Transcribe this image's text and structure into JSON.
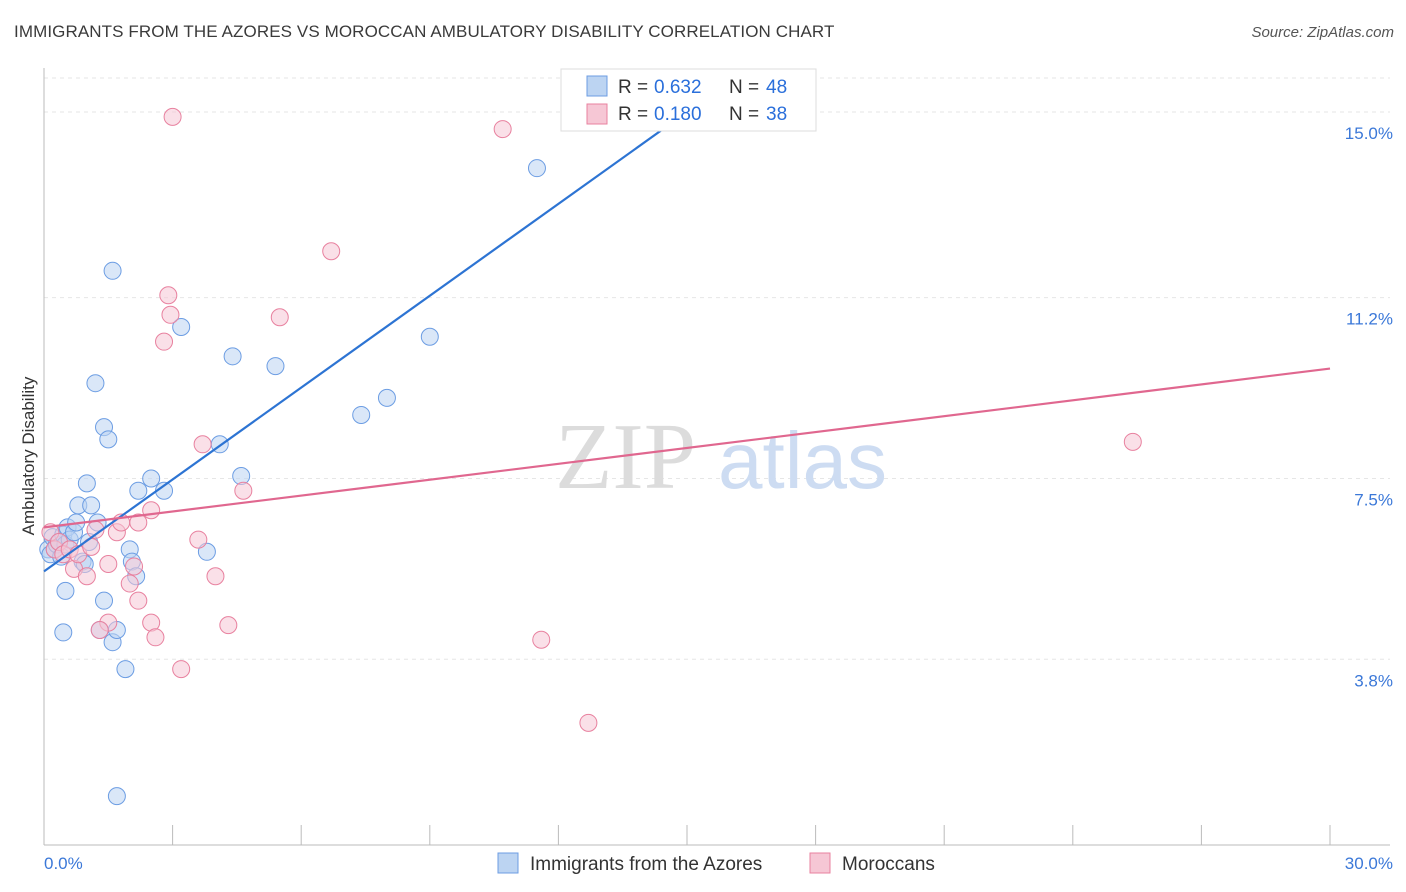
{
  "header": {
    "title": "IMMIGRANTS FROM THE AZORES VS MOROCCAN AMBULATORY DISABILITY CORRELATION CHART",
    "source": "Source: ZipAtlas.com"
  },
  "watermark": {
    "part1": "ZIP",
    "part2": "atlas"
  },
  "chart_data": {
    "type": "scatter",
    "title": "IMMIGRANTS FROM THE AZORES VS MOROCCAN AMBULATORY DISABILITY CORRELATION CHART",
    "xlabel": "",
    "ylabel": "Ambulatory Disability",
    "xlim": [
      0,
      30
    ],
    "ylim": [
      0,
      15.9
    ],
    "x_tick_labels": {
      "left": "0.0%",
      "right": "30.0%"
    },
    "y_ticks": [
      {
        "value": 3.8,
        "label": "3.8%"
      },
      {
        "value": 7.5,
        "label": "7.5%"
      },
      {
        "value": 11.2,
        "label": "11.2%"
      },
      {
        "value": 15.0,
        "label": "15.0%"
      }
    ],
    "grid": true,
    "legend": {
      "placement": "top-center",
      "r_label": "R = ",
      "n_label": "N = ",
      "entries": [
        {
          "r": "0.632",
          "n": "48"
        },
        {
          "r": "0.180",
          "n": "38"
        }
      ]
    },
    "series": [
      {
        "name": "Immigrants from the Azores",
        "color": "#6c9de3",
        "fill": "#bcd4f2",
        "points": [
          [
            0.1,
            6.05
          ],
          [
            0.15,
            5.95
          ],
          [
            0.2,
            6.3
          ],
          [
            0.25,
            6.05
          ],
          [
            0.3,
            6.15
          ],
          [
            0.35,
            6.2
          ],
          [
            0.4,
            5.9
          ],
          [
            0.45,
            6.35
          ],
          [
            0.5,
            6.15
          ],
          [
            0.55,
            6.5
          ],
          [
            0.6,
            6.25
          ],
          [
            0.7,
            6.4
          ],
          [
            0.75,
            6.6
          ],
          [
            0.8,
            6.95
          ],
          [
            0.9,
            5.8
          ],
          [
            0.95,
            5.75
          ],
          [
            1.0,
            7.4
          ],
          [
            1.05,
            6.2
          ],
          [
            1.1,
            6.95
          ],
          [
            1.2,
            9.45
          ],
          [
            1.25,
            6.6
          ],
          [
            1.4,
            8.55
          ],
          [
            1.5,
            8.3
          ],
          [
            1.6,
            11.75
          ],
          [
            2.0,
            6.05
          ],
          [
            2.05,
            5.8
          ],
          [
            2.15,
            5.5
          ],
          [
            2.2,
            7.25
          ],
          [
            2.5,
            7.5
          ],
          [
            2.8,
            7.25
          ],
          [
            3.2,
            10.6
          ],
          [
            3.8,
            6.0
          ],
          [
            4.1,
            8.2
          ],
          [
            4.4,
            10.0
          ],
          [
            4.6,
            7.55
          ],
          [
            5.4,
            9.8
          ],
          [
            7.4,
            8.8
          ],
          [
            8.0,
            9.15
          ],
          [
            9.0,
            10.4
          ],
          [
            11.5,
            13.85
          ],
          [
            0.5,
            5.2
          ],
          [
            0.45,
            4.35
          ],
          [
            1.4,
            5.0
          ],
          [
            1.9,
            3.6
          ],
          [
            1.3,
            4.4
          ],
          [
            1.6,
            4.15
          ],
          [
            1.7,
            4.4
          ],
          [
            1.7,
            1.0
          ]
        ],
        "trend": {
          "x0": 0.0,
          "y0": 5.6,
          "x1": 15.0,
          "y1": 15.0
        }
      },
      {
        "name": "Moroccans",
        "color": "#e8819f",
        "fill": "#f6c7d5",
        "points": [
          [
            0.15,
            6.4
          ],
          [
            0.25,
            6.05
          ],
          [
            0.35,
            6.2
          ],
          [
            0.45,
            5.95
          ],
          [
            0.6,
            6.05
          ],
          [
            0.7,
            5.65
          ],
          [
            0.8,
            5.95
          ],
          [
            1.0,
            5.5
          ],
          [
            1.2,
            6.45
          ],
          [
            1.5,
            5.75
          ],
          [
            1.7,
            6.4
          ],
          [
            1.8,
            6.6
          ],
          [
            2.2,
            6.6
          ],
          [
            2.1,
            5.7
          ],
          [
            2.2,
            5.0
          ],
          [
            2.5,
            6.85
          ],
          [
            2.5,
            4.55
          ],
          [
            2.8,
            10.3
          ],
          [
            2.9,
            11.25
          ],
          [
            2.95,
            10.85
          ],
          [
            3.2,
            3.6
          ],
          [
            3.6,
            6.25
          ],
          [
            3.7,
            8.2
          ],
          [
            4.0,
            5.5
          ],
          [
            4.3,
            4.5
          ],
          [
            4.65,
            7.25
          ],
          [
            5.5,
            10.8
          ],
          [
            6.7,
            12.15
          ],
          [
            10.7,
            14.65
          ],
          [
            11.6,
            4.2
          ],
          [
            12.7,
            2.5
          ],
          [
            25.4,
            8.25
          ],
          [
            3.0,
            14.9
          ],
          [
            1.5,
            4.55
          ],
          [
            1.3,
            4.4
          ],
          [
            2.0,
            5.35
          ],
          [
            2.6,
            4.25
          ],
          [
            1.1,
            6.1
          ]
        ],
        "trend": {
          "x0": 0.0,
          "y0": 6.5,
          "x1": 30.0,
          "y1": 9.75
        }
      }
    ]
  }
}
